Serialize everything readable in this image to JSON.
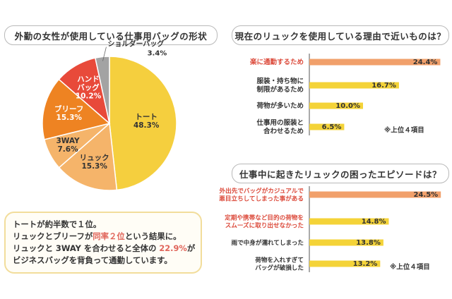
{
  "pie_title": "外勤の女性が使用している仕事用バッグの形状",
  "reason_title": "現在のリュックを使用している理由で近いものは？",
  "episode_title": "仕事中に起きたリュックの困ったエピソードは？",
  "summary": {
    "line1": "トートが約半数で１位。",
    "line2_pre": "リュックとブリーフが",
    "line2_hl": "同率２位",
    "line2_post": "という結果に。",
    "line3_pre": "リュックと 3WAY を合わせると全体の ",
    "line3_hl": "22.9%",
    "line3_post": "が",
    "line4": "ビジネスバッグを背負って通勤しています。"
  },
  "colors": {
    "tote": "#f5cf3e",
    "ryukku": "#f5b46a",
    "threeway": "#f5b46a",
    "briefcase": "#ee8322",
    "handbag": "#e84a3a",
    "shoulder": "#a3a3a3",
    "bar_orange": "#f1a06b",
    "bar_yellow": "#f4d338",
    "label_red": "#dc4b3c"
  },
  "chart_data": [
    {
      "type": "pie",
      "title": "外勤の女性が使用している仕事用バッグの形状",
      "slices": [
        {
          "label": "トート",
          "value": 48.3,
          "color_key": "tote"
        },
        {
          "label": "リュック",
          "value": 15.3,
          "color_key": "ryukku"
        },
        {
          "label": "3WAY",
          "value": 7.6,
          "color_key": "threeway"
        },
        {
          "label": "ブリーフ",
          "value": 15.3,
          "color_key": "briefcase"
        },
        {
          "label": "ハンド\nバッグ",
          "value": 10.2,
          "color_key": "handbag"
        },
        {
          "label": "ショルダーバッグ",
          "value": 3.4,
          "color_key": "shoulder"
        }
      ],
      "value_suffix": "%"
    },
    {
      "type": "bar",
      "title": "現在のリュックを使用している理由で近いものは？",
      "categories": [
        "楽に通勤するため",
        "服装・持ち物に\n制限があるため",
        "荷物が多いため",
        "仕事用の服装と\n合わせるため"
      ],
      "values": [
        24.4,
        16.7,
        10.0,
        6.5
      ],
      "value_labels": [
        "24.4%",
        "16.7%",
        "10.0%",
        "6.5%"
      ],
      "highlight_index": 0,
      "xlim": [
        0,
        25
      ],
      "note": "※上位４項目"
    },
    {
      "type": "bar",
      "title": "仕事中に起きたリュックの困ったエピソードは？",
      "categories": [
        "外出先でバッグがカジュアルで\n悪目立ちしてしまった事がある",
        "定期や携帯など目的の荷物を\nスムーズに取り出せなかった",
        "雨で中身が濡れてしまった",
        "荷物を入れすぎて\nバッグが破損した"
      ],
      "values": [
        24.5,
        14.8,
        13.8,
        13.2
      ],
      "value_labels": [
        "24.5%",
        "14.8%",
        "13.8%",
        "13.2%"
      ],
      "highlight_index": 0,
      "label_red_indices": [
        0,
        1
      ],
      "xlim": [
        0,
        25
      ],
      "note": "※上位４項目"
    }
  ]
}
